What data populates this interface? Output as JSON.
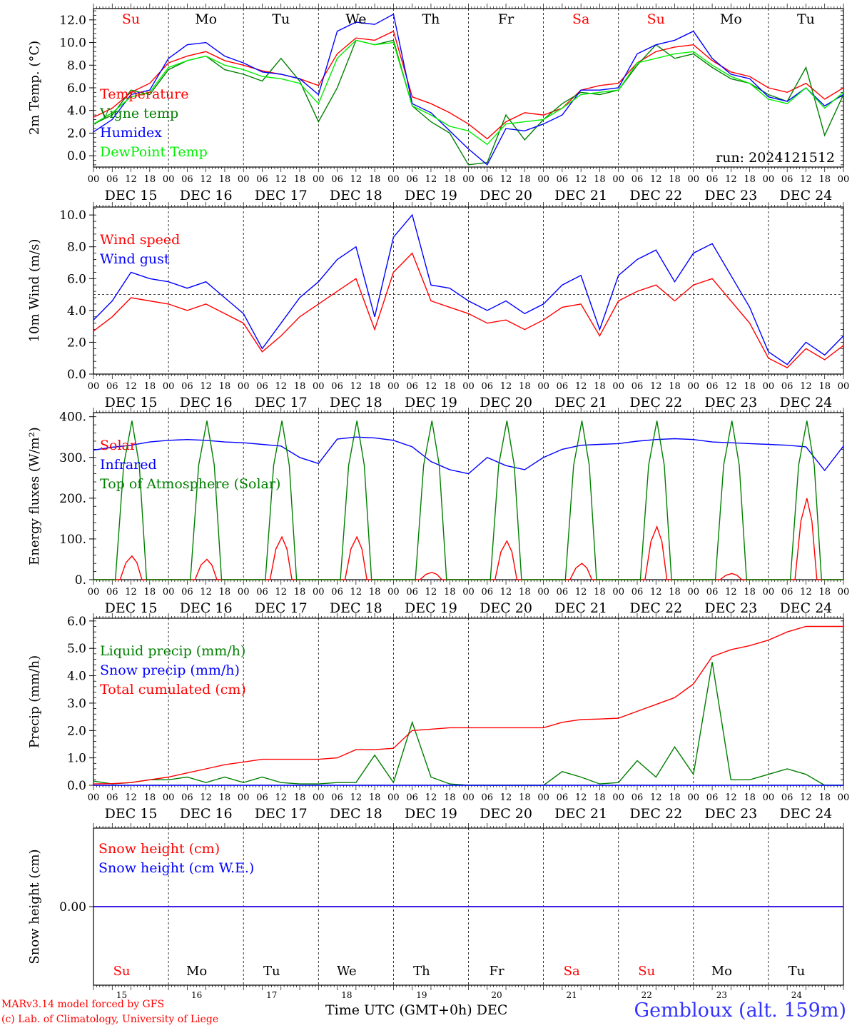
{
  "footer": {
    "model_line": "MARv3.14 model forced by GFS",
    "copyright_line": "(c) Lab. of Climatology, University of Liege",
    "time_axis_label": "Time UTC (GMT+0h) DEC",
    "station": "Gembloux (alt. 159m)"
  },
  "run_label": "run: 2024121512",
  "weekdays": [
    "Su",
    "Mo",
    "Tu",
    "We",
    "Th",
    "Fr",
    "Sa",
    "Su",
    "Mo",
    "Tu"
  ],
  "weekend_color": "#ff0000",
  "weekday_color": "#000000",
  "weekend_flags": [
    true,
    false,
    false,
    false,
    false,
    false,
    true,
    true,
    false,
    false
  ],
  "date_labels": [
    "DEC 15",
    "DEC 16",
    "DEC 17",
    "DEC 18",
    "DEC 19",
    "DEC 20",
    "DEC 21",
    "DEC 22",
    "DEC 23",
    "DEC 24"
  ],
  "day_numbers": [
    "15",
    "16",
    "17",
    "18",
    "19",
    "20",
    "21",
    "22",
    "23",
    "24"
  ],
  "hour_ticks": [
    "00",
    "06",
    "12",
    "18"
  ],
  "final_hour_tick": "00",
  "colors": {
    "red": "#ff0000",
    "green": "#007f00",
    "blue": "#0000ff",
    "lightgreen": "#00ee00",
    "grid": "#555555"
  },
  "chart_data": [
    {
      "type": "line",
      "ylabel": "2m Temp. (°C)",
      "ylim": [
        -1,
        13
      ],
      "yticks": [
        0,
        2,
        4,
        6,
        8,
        10,
        12
      ],
      "ytick_labels": [
        "0.0",
        "2.0",
        "4.0",
        "6.0",
        "8.0",
        "10.0",
        "12.0"
      ],
      "x_hours": [
        0,
        6,
        12,
        18,
        24,
        30,
        36,
        42,
        48,
        54,
        60,
        66,
        72,
        78,
        84,
        90,
        96,
        102,
        108,
        114,
        120,
        126,
        132,
        138,
        144,
        150,
        156,
        162,
        168,
        174,
        180,
        186,
        192,
        198,
        204,
        210,
        216,
        222,
        228,
        234,
        240
      ],
      "series": [
        {
          "name": "Temperature",
          "color": "#ff0000",
          "values": [
            3.4,
            4.2,
            5.6,
            6.4,
            8.2,
            8.8,
            9.2,
            8.4,
            8.0,
            7.5,
            7.2,
            6.8,
            6.2,
            9.0,
            10.4,
            10.2,
            11.0,
            5.2,
            4.6,
            3.8,
            2.8,
            1.5,
            3.0,
            3.8,
            3.6,
            4.2,
            5.8,
            6.2,
            6.4,
            8.2,
            9.2,
            9.6,
            9.8,
            8.4,
            7.4,
            7.0,
            6.0,
            5.6,
            6.4,
            5.0,
            6.0
          ]
        },
        {
          "name": "Vigne temp",
          "color": "#007f00",
          "values": [
            2.8,
            3.6,
            5.8,
            5.4,
            7.6,
            8.4,
            8.8,
            7.6,
            7.2,
            6.6,
            8.6,
            6.6,
            3.0,
            6.0,
            10.2,
            9.8,
            10.2,
            4.4,
            3.0,
            2.0,
            -0.8,
            -0.6,
            3.6,
            1.4,
            3.2,
            4.6,
            5.6,
            5.4,
            5.8,
            8.0,
            9.8,
            8.6,
            9.0,
            7.8,
            6.8,
            6.4,
            5.4,
            4.8,
            7.8,
            1.8,
            5.4
          ]
        },
        {
          "name": "Humidex",
          "color": "#0000ff",
          "values": [
            2.1,
            3.2,
            5.4,
            5.8,
            8.6,
            9.8,
            10.0,
            8.8,
            8.2,
            7.4,
            7.2,
            6.8,
            5.4,
            11.0,
            11.8,
            11.6,
            12.5,
            4.6,
            3.8,
            2.2,
            0.6,
            -0.8,
            2.4,
            2.2,
            2.8,
            3.6,
            5.8,
            5.8,
            6.0,
            9.0,
            9.8,
            10.2,
            11.0,
            8.6,
            7.2,
            6.8,
            5.2,
            4.8,
            6.0,
            4.4,
            5.4
          ]
        },
        {
          "name": "DewPoint Temp",
          "color": "#00ee00",
          "values": [
            2.8,
            3.8,
            5.2,
            5.6,
            7.8,
            8.4,
            8.8,
            8.0,
            7.6,
            7.0,
            6.8,
            6.4,
            4.6,
            8.6,
            10.2,
            9.8,
            10.0,
            4.4,
            3.6,
            2.6,
            2.2,
            1.0,
            2.8,
            3.0,
            3.2,
            4.2,
            5.4,
            5.6,
            5.8,
            8.2,
            8.6,
            9.0,
            9.2,
            8.0,
            7.0,
            6.4,
            5.0,
            4.6,
            6.0,
            4.2,
            5.6
          ]
        }
      ]
    },
    {
      "type": "line",
      "ylabel": "10m Wind (m/s)",
      "ylim": [
        0,
        10.5
      ],
      "yticks": [
        0,
        2,
        4,
        6,
        8,
        10
      ],
      "ytick_labels": [
        "0.0",
        "2.0",
        "4.0",
        "6.0",
        "8.0",
        "10.0"
      ],
      "reference_line": 5,
      "x_hours": [
        0,
        6,
        12,
        18,
        24,
        30,
        36,
        42,
        48,
        54,
        60,
        66,
        72,
        78,
        84,
        90,
        96,
        102,
        108,
        114,
        120,
        126,
        132,
        138,
        144,
        150,
        156,
        162,
        168,
        174,
        180,
        186,
        192,
        198,
        204,
        210,
        216,
        222,
        228,
        234,
        240
      ],
      "series": [
        {
          "name": "Wind speed",
          "color": "#ff0000",
          "values": [
            2.7,
            3.6,
            4.8,
            4.6,
            4.4,
            4.0,
            4.4,
            3.8,
            3.2,
            1.4,
            2.4,
            3.6,
            4.4,
            5.2,
            6.0,
            2.8,
            6.4,
            7.6,
            4.6,
            4.2,
            3.8,
            3.2,
            3.4,
            2.8,
            3.4,
            4.2,
            4.4,
            2.4,
            4.6,
            5.2,
            5.6,
            4.6,
            5.6,
            6.0,
            4.6,
            3.2,
            1.0,
            0.4,
            1.6,
            0.9,
            1.8
          ]
        },
        {
          "name": "Wind gust",
          "color": "#0000ff",
          "values": [
            3.4,
            4.6,
            6.4,
            6.0,
            5.8,
            5.4,
            5.8,
            4.8,
            3.8,
            1.6,
            3.2,
            4.8,
            5.8,
            7.2,
            8.0,
            3.6,
            8.6,
            10.0,
            5.6,
            5.4,
            4.6,
            4.0,
            4.6,
            3.8,
            4.4,
            5.6,
            6.2,
            2.8,
            6.2,
            7.2,
            7.8,
            5.8,
            7.6,
            8.2,
            6.2,
            4.2,
            1.4,
            0.6,
            2.0,
            1.2,
            2.4
          ]
        }
      ]
    },
    {
      "type": "line",
      "ylabel": "Energy fluxes (W/m²)",
      "ylim": [
        0,
        410
      ],
      "yticks": [
        0,
        100,
        200,
        300,
        400
      ],
      "ytick_labels": [
        "0.",
        "100.",
        "200.",
        "300.",
        "400."
      ],
      "series": [
        {
          "name": "Solar",
          "color": "#ff0000",
          "day_peaks": [
            58,
            50,
            105,
            105,
            18,
            95,
            40,
            130,
            15,
            200
          ]
        },
        {
          "name": "Infrared",
          "color": "#0000ff",
          "values": [
            318,
            325,
            330,
            338,
            342,
            344,
            342,
            338,
            336,
            332,
            328,
            300,
            285,
            345,
            350,
            348,
            342,
            326,
            290,
            270,
            260,
            300,
            280,
            270,
            300,
            320,
            330,
            332,
            334,
            340,
            344,
            346,
            344,
            338,
            336,
            334,
            332,
            330,
            326,
            268,
            328
          ]
        },
        {
          "name": "Top of Atmosphere (Solar)",
          "color": "#007f00",
          "day_peaks": [
            390,
            390,
            390,
            390,
            390,
            390,
            390,
            390,
            390,
            390
          ]
        }
      ]
    },
    {
      "type": "line",
      "ylabel": "Precip (mm/h)",
      "ylim": [
        0,
        6.1
      ],
      "yticks": [
        0,
        1,
        2,
        3,
        4,
        5,
        6
      ],
      "ytick_labels": [
        "0.0",
        "1.0",
        "2.0",
        "3.0",
        "4.0",
        "5.0",
        "6.0"
      ],
      "x_hours": [
        0,
        6,
        12,
        18,
        24,
        30,
        36,
        42,
        48,
        54,
        60,
        66,
        72,
        78,
        84,
        90,
        96,
        102,
        108,
        114,
        120,
        126,
        132,
        138,
        144,
        150,
        156,
        162,
        168,
        174,
        180,
        186,
        192,
        198,
        204,
        210,
        216,
        222,
        228,
        234,
        240
      ],
      "series": [
        {
          "name": "Liquid precip (mm/h)",
          "color": "#007f00",
          "values": [
            0.15,
            0.05,
            0.1,
            0.2,
            0.2,
            0.3,
            0.1,
            0.3,
            0.1,
            0.3,
            0.1,
            0.05,
            0.05,
            0.1,
            0.1,
            1.1,
            0.1,
            2.3,
            0.3,
            0.05,
            0,
            0,
            0,
            0,
            0,
            0.5,
            0.3,
            0.05,
            0.1,
            0.9,
            0.3,
            1.4,
            0.4,
            4.5,
            0.2,
            0.2,
            0.4,
            0.6,
            0.4,
            0,
            0
          ]
        },
        {
          "name": "Snow precip (mm/h)",
          "color": "#0000ff",
          "values": [
            0,
            0,
            0,
            0,
            0,
            0,
            0,
            0,
            0,
            0,
            0,
            0,
            0,
            0,
            0,
            0,
            0,
            0,
            0,
            0,
            0,
            0,
            0,
            0,
            0,
            0,
            0,
            0,
            0,
            0,
            0,
            0,
            0,
            0,
            0,
            0,
            0,
            0,
            0,
            0,
            0
          ]
        },
        {
          "name": "Total cumulated (cm)",
          "color": "#ff0000",
          "values": [
            0.05,
            0.06,
            0.1,
            0.2,
            0.3,
            0.45,
            0.6,
            0.75,
            0.85,
            0.95,
            0.95,
            0.95,
            0.95,
            1.0,
            1.3,
            1.3,
            1.35,
            2.0,
            2.05,
            2.1,
            2.1,
            2.1,
            2.1,
            2.1,
            2.1,
            2.3,
            2.4,
            2.42,
            2.45,
            2.7,
            2.95,
            3.2,
            3.7,
            4.7,
            4.95,
            5.1,
            5.3,
            5.6,
            5.8,
            5.8,
            5.8
          ]
        }
      ]
    },
    {
      "type": "line",
      "ylabel": "Snow height (cm)",
      "yticks": [
        0
      ],
      "ytick_labels": [
        "0.00"
      ],
      "series": [
        {
          "name": "Snow height (cm)",
          "color": "#ff0000",
          "values": [
            0,
            0
          ]
        },
        {
          "name": "Snow height (cm W.E.)",
          "color": "#0000ff",
          "values": [
            0,
            0
          ]
        }
      ]
    }
  ]
}
